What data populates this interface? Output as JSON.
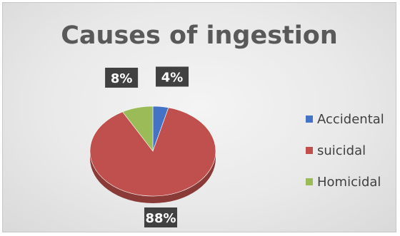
{
  "chart_data": {
    "type": "pie",
    "title": "Causes of ingestion",
    "categories": [
      "Accidental",
      "suicidal",
      "Homicidal"
    ],
    "values": [
      4,
      88,
      8
    ],
    "data_labels": [
      "4%",
      "88%",
      "8%"
    ],
    "colors": [
      "#4472c4",
      "#c0504d",
      "#9bbb59"
    ],
    "legend_position": "right",
    "style": "3d"
  }
}
